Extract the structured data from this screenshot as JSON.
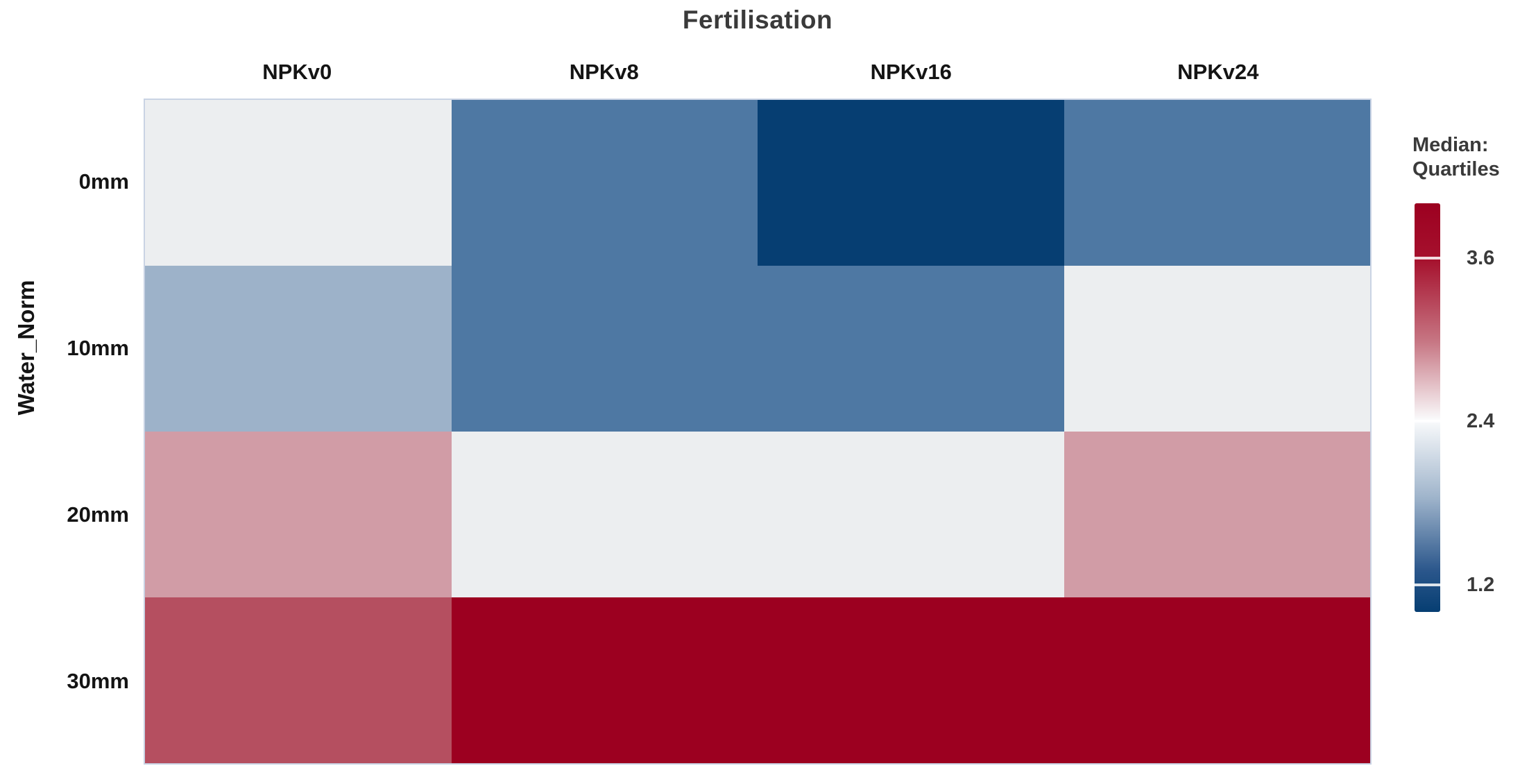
{
  "chart_data": {
    "type": "heatmap",
    "title": "Fertilisation",
    "x_axis_title": "Fertilisation",
    "y_axis_title": "Water_Norm",
    "columns": [
      "NPKv0",
      "NPKv8",
      "NPKv16",
      "NPKv24"
    ],
    "rows": [
      "0mm",
      "10mm",
      "20mm",
      "30mm"
    ],
    "values": [
      [
        2.35,
        1.55,
        1.0,
        1.55
      ],
      [
        1.95,
        1.55,
        1.55,
        2.35
      ],
      [
        2.9,
        2.35,
        2.35,
        2.9
      ],
      [
        3.4,
        3.95,
        3.95,
        3.95
      ]
    ],
    "cell_colors": [
      [
        "#ECEEF0",
        "#4E78A3",
        "#063E72",
        "#4E78A3"
      ],
      [
        "#9DB2C9",
        "#4E78A3",
        "#4E78A3",
        "#ECEEF0"
      ],
      [
        "#D19CA6",
        "#ECEEF0",
        "#ECEEF0",
        "#D19CA6"
      ],
      [
        "#B54F60",
        "#9C0020",
        "#9C0020",
        "#9C0020"
      ]
    ],
    "legend": {
      "title_line1": "Median:",
      "title_line2": "Quartiles",
      "ticks": [
        "3.6",
        "2.4",
        "1.2"
      ],
      "tick_values": [
        3.6,
        2.4,
        1.2
      ],
      "scale_min": 1.0,
      "scale_max": 4.0,
      "legend_position": "right",
      "gradient": {
        "positions": [
          0,
          14,
          34,
          53,
          72,
          90,
          100
        ],
        "colors": [
          "#9C0020",
          "#A6122E",
          "#C77784",
          "#FAFBFC",
          "#9FB4CB",
          "#2A568B",
          "#063E72"
        ]
      }
    },
    "layout": {
      "grid_on": false,
      "colors": {
        "max_red": "#9C0020",
        "center_light": "#ECEEF0",
        "min_blue": "#063E72",
        "title_text": "#3A3A3A",
        "label_text": "#141414",
        "grid_border": "#C9D3E4"
      }
    }
  }
}
